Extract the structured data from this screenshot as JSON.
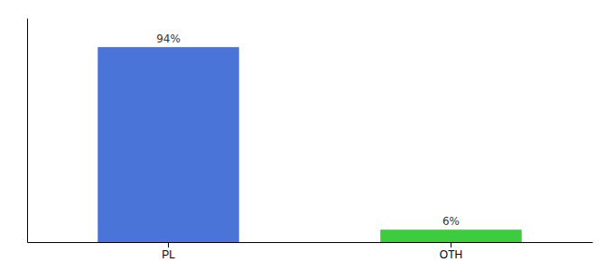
{
  "chart_data": {
    "type": "bar",
    "categories": [
      "PL",
      "OTH"
    ],
    "values": [
      94,
      6
    ],
    "value_labels": [
      "94%",
      "6%"
    ],
    "colors": [
      "#4b74d9",
      "#3dcc3d"
    ],
    "ylim": [
      0,
      108
    ],
    "data_labels": true,
    "tick_labels": "x"
  }
}
